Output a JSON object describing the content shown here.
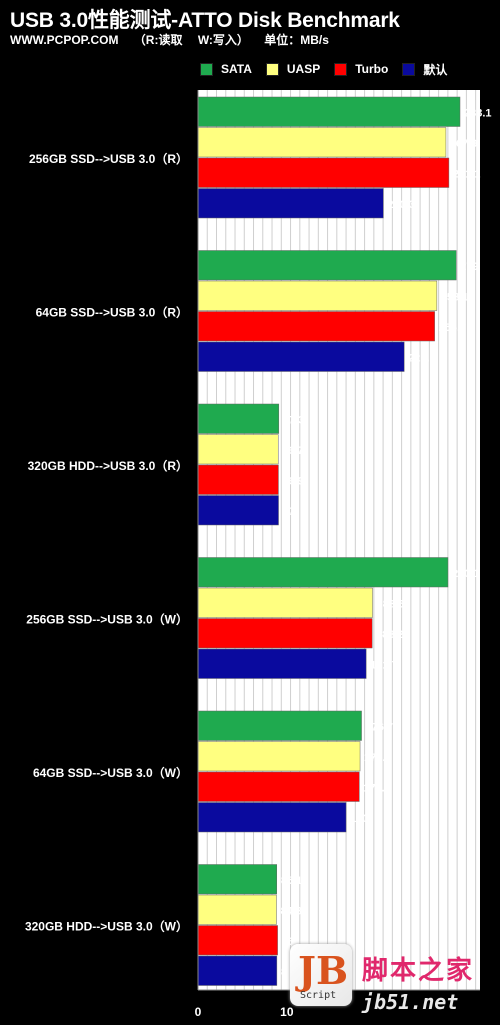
{
  "chart_data": {
    "type": "bar",
    "orientation": "horizontal",
    "title": "USB 3.0性能测试-ATTO Disk Benchmark",
    "subtitle": [
      "WWW.PCPOP.COM",
      "（R:读取",
      "W:写入）",
      "单位：MB/s"
    ],
    "categories": [
      "256GB SSD-->USB 3.0（R）",
      "64GB SSD-->USB 3.0（R）",
      "320GB HDD-->USB 3.0（R）",
      "256GB SSD-->USB 3.0（W）",
      "64GB SSD-->USB 3.0（W）",
      "320GB HDD-->USB 3.0（W）"
    ],
    "series": [
      {
        "name": "SATA",
        "color": "#1faa4f",
        "values": [
          283.1,
          279,
          87.3,
          270.1,
          176.7,
          85.1
        ]
      },
      {
        "name": "UASP",
        "color": "#ffff80",
        "values": [
          267.9,
          258.1,
          86.7,
          188.6,
          175.1,
          84.8
        ]
      },
      {
        "name": "Turbo",
        "color": "#ff0000",
        "values": [
          271.1,
          255.7,
          86.9,
          188.2,
          174.3,
          86
        ]
      },
      {
        "name": "默认",
        "color": "#0a0a9e",
        "values": [
          200.3,
          222.8,
          87,
          181.7,
          160,
          85.2
        ]
      }
    ],
    "xlim": [
      0,
      300
    ],
    "x_ticks": [
      0,
      10
    ],
    "grid": true,
    "legend_position": "top"
  },
  "watermark": {
    "logo_letters": "JB",
    "logo_caption": "Script",
    "site_name": "脚本之家",
    "site_url": "jb51.net"
  }
}
